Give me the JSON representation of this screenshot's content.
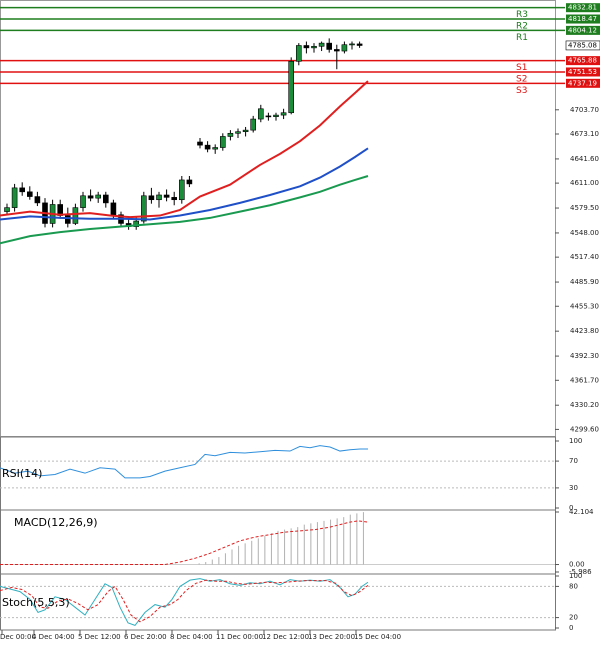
{
  "chart_data": [
    {
      "type": "candlestick",
      "panel": "main",
      "y_ticks": [
        "4703.70",
        "4673.10",
        "4641.60",
        "4611.00",
        "4579.50",
        "4548.00",
        "4517.40",
        "4485.90",
        "4455.30",
        "4423.80",
        "4392.30",
        "4361.70",
        "4330.20",
        "4299.60"
      ],
      "ylim": [
        4290,
        4840
      ],
      "levels": [
        {
          "label": "R3",
          "value": 4832.81,
          "value_text": "4832.81",
          "color": "#1e7d1e"
        },
        {
          "label": "R2",
          "value": 4818.47,
          "value_text": "4818.47",
          "color": "#1e7d1e"
        },
        {
          "label": "R1",
          "value": 4804.12,
          "value_text": "4804.12",
          "color": "#1e7d1e"
        },
        {
          "label": "S1",
          "value": 4765.88,
          "value_text": "4765.88",
          "color": "#e01010"
        },
        {
          "label": "S2",
          "value": 4751.53,
          "value_text": "4751.53",
          "color": "#e01010"
        },
        {
          "label": "S3",
          "value": 4737.19,
          "value_text": "4737.19",
          "color": "#e01010"
        }
      ],
      "current_price": {
        "value": 4785.08,
        "text": "4785.08"
      },
      "candles": [
        [
          4575,
          4585,
          4570,
          4580
        ],
        [
          4580,
          4610,
          4575,
          4605
        ],
        [
          4605,
          4612,
          4595,
          4600
        ],
        [
          4600,
          4607,
          4590,
          4594
        ],
        [
          4594,
          4600,
          4582,
          4586
        ],
        [
          4586,
          4592,
          4555,
          4560
        ],
        [
          4560,
          4590,
          4555,
          4584
        ],
        [
          4584,
          4590,
          4566,
          4570
        ],
        [
          4570,
          4580,
          4555,
          4560
        ],
        [
          4560,
          4585,
          4558,
          4580
        ],
        [
          4580,
          4600,
          4575,
          4595
        ],
        [
          4595,
          4603,
          4588,
          4592
        ],
        [
          4592,
          4600,
          4586,
          4596
        ],
        [
          4596,
          4600,
          4580,
          4586
        ],
        [
          4586,
          4590,
          4566,
          4571
        ],
        [
          4571,
          4575,
          4555,
          4560
        ],
        [
          4560,
          4568,
          4552,
          4556
        ],
        [
          4556,
          4568,
          4552,
          4563
        ],
        [
          4563,
          4600,
          4560,
          4595
        ],
        [
          4595,
          4605,
          4585,
          4590
        ],
        [
          4590,
          4600,
          4580,
          4596
        ],
        [
          4596,
          4603,
          4588,
          4593
        ],
        [
          4593,
          4600,
          4583,
          4590
        ],
        [
          4590,
          4620,
          4585,
          4615
        ],
        [
          4615,
          4620,
          4606,
          4610
        ],
        [
          4663,
          4668,
          4655,
          4659
        ],
        [
          4659,
          4664,
          4650,
          4654
        ],
        [
          4654,
          4660,
          4648,
          4656
        ],
        [
          4656,
          4674,
          4652,
          4670
        ],
        [
          4670,
          4678,
          4665,
          4674
        ],
        [
          4674,
          4680,
          4668,
          4676
        ],
        [
          4676,
          4682,
          4670,
          4678
        ],
        [
          4678,
          4696,
          4675,
          4692
        ],
        [
          4692,
          4710,
          4688,
          4705
        ],
        [
          4696,
          4700,
          4690,
          4695
        ],
        [
          4695,
          4700,
          4690,
          4697
        ],
        [
          4697,
          4705,
          4692,
          4700
        ],
        [
          4700,
          4770,
          4698,
          4765
        ],
        [
          4765,
          4788,
          4760,
          4785
        ],
        [
          4785,
          4790,
          4775,
          4782
        ],
        [
          4782,
          4788,
          4776,
          4784
        ],
        [
          4784,
          4790,
          4778,
          4788
        ],
        [
          4788,
          4794,
          4776,
          4780
        ],
        [
          4780,
          4786,
          4755,
          4778
        ],
        [
          4778,
          4790,
          4775,
          4786
        ],
        [
          4786,
          4790,
          4780,
          4787
        ],
        [
          4787,
          4790,
          4782,
          4785
        ]
      ],
      "moving_averages": [
        {
          "color": "#e02020",
          "values": [
            [
              0,
              4570
            ],
            [
              30,
              4575
            ],
            [
              60,
              4571
            ],
            [
              90,
              4573
            ],
            [
              110,
              4570
            ],
            [
              130,
              4568
            ],
            [
              160,
              4570
            ],
            [
              180,
              4577
            ],
            [
              200,
              4594
            ],
            [
              230,
              4609
            ],
            [
              260,
              4634
            ],
            [
              280,
              4648
            ],
            [
              300,
              4664
            ],
            [
              320,
              4684
            ],
            [
              340,
              4708
            ],
            [
              355,
              4725
            ],
            [
              368,
              4740
            ]
          ]
        },
        {
          "color": "#2050c8",
          "values": [
            [
              0,
              4565
            ],
            [
              30,
              4569
            ],
            [
              60,
              4567
            ],
            [
              90,
              4566
            ],
            [
              120,
              4566
            ],
            [
              150,
              4565
            ],
            [
              180,
              4570
            ],
            [
              210,
              4577
            ],
            [
              240,
              4586
            ],
            [
              270,
              4596
            ],
            [
              300,
              4607
            ],
            [
              320,
              4618
            ],
            [
              340,
              4632
            ],
            [
              355,
              4644
            ],
            [
              368,
              4655
            ]
          ]
        },
        {
          "color": "#1a9a50",
          "values": [
            [
              0,
              4535
            ],
            [
              30,
              4544
            ],
            [
              60,
              4549
            ],
            [
              90,
              4553
            ],
            [
              120,
              4556
            ],
            [
              150,
              4559
            ],
            [
              180,
              4562
            ],
            [
              210,
              4567
            ],
            [
              240,
              4575
            ],
            [
              270,
              4583
            ],
            [
              300,
              4593
            ],
            [
              320,
              4600
            ],
            [
              340,
              4609
            ],
            [
              355,
              4615
            ],
            [
              368,
              4620
            ]
          ]
        }
      ]
    },
    {
      "type": "line",
      "panel": "rsi",
      "label": "RSI(14)",
      "y_ticks": [
        "100",
        "70",
        "30",
        "0"
      ],
      "ylim": [
        0,
        100
      ],
      "values": [
        [
          0,
          60
        ],
        [
          15,
          52
        ],
        [
          28,
          55
        ],
        [
          40,
          48
        ],
        [
          55,
          50
        ],
        [
          70,
          58
        ],
        [
          85,
          52
        ],
        [
          100,
          60
        ],
        [
          115,
          58
        ],
        [
          125,
          45
        ],
        [
          140,
          45
        ],
        [
          150,
          47
        ],
        [
          165,
          55
        ],
        [
          180,
          60
        ],
        [
          195,
          65
        ],
        [
          205,
          80
        ],
        [
          215,
          78
        ],
        [
          230,
          83
        ],
        [
          245,
          82
        ],
        [
          260,
          84
        ],
        [
          275,
          86
        ],
        [
          290,
          85
        ],
        [
          300,
          92
        ],
        [
          310,
          90
        ],
        [
          320,
          93
        ],
        [
          330,
          91
        ],
        [
          340,
          85
        ],
        [
          350,
          87
        ],
        [
          360,
          88
        ],
        [
          368,
          88
        ]
      ]
    },
    {
      "type": "bar+line",
      "panel": "macd",
      "label": "MACD(12,26,9)",
      "y_ticks": [
        "42.104",
        "0.00",
        "-5.986"
      ],
      "ylim": [
        -5.986,
        42.104
      ],
      "histogram": [
        0,
        0,
        0,
        0,
        0,
        0,
        0,
        0,
        0,
        0,
        0,
        0,
        0,
        0,
        0,
        0,
        0,
        0,
        0,
        0,
        0,
        0,
        0,
        0,
        0,
        0,
        0,
        0,
        0,
        0,
        1,
        2,
        4,
        6,
        9,
        12,
        15,
        17,
        19,
        21,
        23,
        25,
        27,
        28,
        29,
        30,
        32,
        33,
        34,
        35,
        36,
        37,
        38,
        40,
        41,
        42
      ],
      "signal": [
        [
          0,
          0
        ],
        [
          40,
          0
        ],
        [
          80,
          0
        ],
        [
          120,
          0
        ],
        [
          150,
          0
        ],
        [
          165,
          0
        ],
        [
          180,
          2
        ],
        [
          195,
          5
        ],
        [
          210,
          9
        ],
        [
          225,
          14
        ],
        [
          240,
          19
        ],
        [
          255,
          22
        ],
        [
          270,
          24
        ],
        [
          285,
          26
        ],
        [
          300,
          27
        ],
        [
          315,
          28
        ],
        [
          330,
          30
        ],
        [
          340,
          32
        ],
        [
          350,
          34
        ],
        [
          358,
          35
        ],
        [
          368,
          34
        ]
      ]
    },
    {
      "type": "line",
      "panel": "stoch",
      "label": "Stoch(5,5,3)",
      "y_ticks": [
        "100",
        "80",
        "20",
        "0"
      ],
      "ylim": [
        0,
        100
      ],
      "main": [
        [
          0,
          80
        ],
        [
          10,
          75
        ],
        [
          20,
          70
        ],
        [
          30,
          55
        ],
        [
          38,
          30
        ],
        [
          45,
          35
        ],
        [
          55,
          60
        ],
        [
          65,
          55
        ],
        [
          75,
          40
        ],
        [
          85,
          25
        ],
        [
          95,
          55
        ],
        [
          105,
          85
        ],
        [
          112,
          78
        ],
        [
          120,
          40
        ],
        [
          128,
          10
        ],
        [
          135,
          5
        ],
        [
          145,
          30
        ],
        [
          155,
          45
        ],
        [
          165,
          40
        ],
        [
          172,
          55
        ],
        [
          180,
          80
        ],
        [
          190,
          92
        ],
        [
          200,
          95
        ],
        [
          210,
          90
        ],
        [
          220,
          93
        ],
        [
          230,
          85
        ],
        [
          240,
          82
        ],
        [
          250,
          87
        ],
        [
          260,
          85
        ],
        [
          270,
          90
        ],
        [
          280,
          83
        ],
        [
          290,
          93
        ],
        [
          300,
          90
        ],
        [
          310,
          92
        ],
        [
          320,
          90
        ],
        [
          330,
          93
        ],
        [
          340,
          78
        ],
        [
          348,
          60
        ],
        [
          355,
          65
        ],
        [
          362,
          80
        ],
        [
          368,
          88
        ]
      ],
      "signal": [
        [
          0,
          72
        ],
        [
          12,
          78
        ],
        [
          22,
          74
        ],
        [
          32,
          62
        ],
        [
          40,
          40
        ],
        [
          48,
          38
        ],
        [
          58,
          52
        ],
        [
          68,
          56
        ],
        [
          78,
          47
        ],
        [
          88,
          35
        ],
        [
          98,
          45
        ],
        [
          108,
          70
        ],
        [
          115,
          80
        ],
        [
          123,
          55
        ],
        [
          131,
          25
        ],
        [
          140,
          12
        ],
        [
          150,
          22
        ],
        [
          160,
          40
        ],
        [
          170,
          45
        ],
        [
          178,
          55
        ],
        [
          186,
          72
        ],
        [
          196,
          86
        ],
        [
          206,
          92
        ],
        [
          216,
          90
        ],
        [
          226,
          90
        ],
        [
          236,
          86
        ],
        [
          246,
          84
        ],
        [
          256,
          86
        ],
        [
          266,
          88
        ],
        [
          276,
          87
        ],
        [
          286,
          88
        ],
        [
          296,
          90
        ],
        [
          306,
          91
        ],
        [
          316,
          91
        ],
        [
          326,
          91
        ],
        [
          336,
          86
        ],
        [
          344,
          70
        ],
        [
          352,
          62
        ],
        [
          360,
          70
        ],
        [
          368,
          82
        ]
      ]
    }
  ],
  "x_axis_labels": [
    "Dec 00:00",
    "4 Dec 04:00",
    "5 Dec 12:00",
    "6 Dec 20:00",
    "8 Dec 04:00",
    "11 Dec 00:00",
    "12 Dec 12:00",
    "13 Dec 20:00",
    "15 Dec 04:00"
  ]
}
